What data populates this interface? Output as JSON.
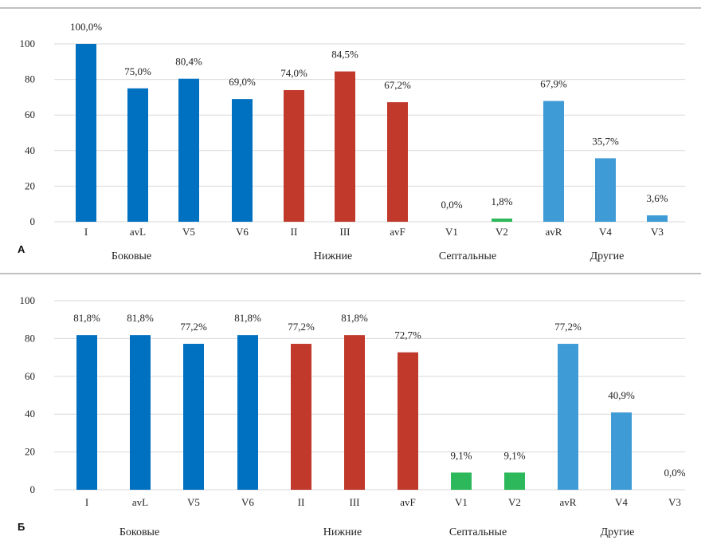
{
  "colors": {
    "lateral": "#0070c0",
    "inferior": "#c0392b",
    "septal": "#2eb85c",
    "other": "#3f9bd6"
  },
  "chart_data": [
    {
      "type": "bar",
      "panel_label": "А",
      "categories": [
        "I",
        "avL",
        "V5",
        "V6",
        "II",
        "III",
        "avF",
        "V1",
        "V2",
        "avR",
        "V4",
        "V3"
      ],
      "values": [
        100.0,
        75.0,
        80.4,
        69.0,
        74.0,
        84.5,
        67.2,
        0.0,
        1.8,
        67.9,
        35.7,
        3.6
      ],
      "data_labels": [
        "100,0%",
        "75,0%",
        "80,4%",
        "69,0%",
        "74,0%",
        "84,5%",
        "67,2%",
        "0,0%",
        "1,8%",
        "67,9%",
        "35,7%",
        "3,6%"
      ],
      "groups": [
        {
          "name": "Боковые",
          "color_key": "lateral",
          "count": 4
        },
        {
          "name": "Нижние",
          "color_key": "inferior",
          "count": 3
        },
        {
          "name": "Септальные",
          "color_key": "septal",
          "count": 2
        },
        {
          "name": "Другие",
          "color_key": "other",
          "count": 3
        }
      ],
      "ylim": [
        0,
        100
      ],
      "yticks": [
        0,
        20,
        40,
        60,
        80,
        100
      ],
      "grid": true
    },
    {
      "type": "bar",
      "panel_label": "Б",
      "categories": [
        "I",
        "avL",
        "V5",
        "V6",
        "II",
        "III",
        "avF",
        "V1",
        "V2",
        "avR",
        "V4",
        "V3"
      ],
      "values": [
        81.8,
        81.8,
        77.2,
        81.8,
        77.2,
        81.8,
        72.7,
        9.1,
        9.1,
        77.2,
        40.9,
        0.0
      ],
      "data_labels": [
        "81,8%",
        "81,8%",
        "77,2%",
        "81,8%",
        "77,2%",
        "81,8%",
        "72,7%",
        "9,1%",
        "9,1%",
        "77,2%",
        "40,9%",
        "0,0%"
      ],
      "groups": [
        {
          "name": "Боковые",
          "color_key": "lateral",
          "count": 4
        },
        {
          "name": "Нижние",
          "color_key": "inferior",
          "count": 3
        },
        {
          "name": "Септальные",
          "color_key": "septal",
          "count": 2
        },
        {
          "name": "Другие",
          "color_key": "other",
          "count": 3
        }
      ],
      "ylim": [
        0,
        100
      ],
      "yticks": [
        0,
        20,
        40,
        60,
        80,
        100
      ],
      "grid": true
    }
  ]
}
